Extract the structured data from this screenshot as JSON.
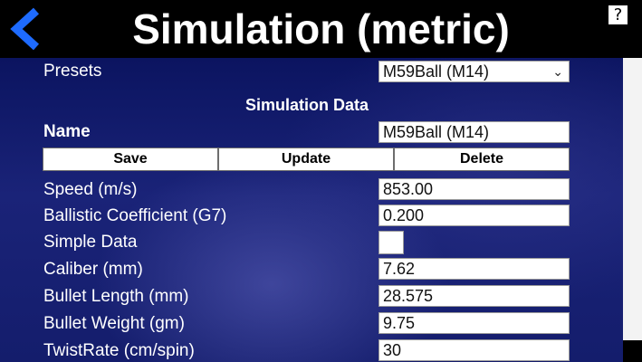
{
  "header": {
    "title": "Simulation (metric)",
    "help_label": "?"
  },
  "presets": {
    "label": "Presets",
    "selected": "M59Ball (M14)"
  },
  "section_heading": "Simulation Data",
  "name": {
    "label": "Name",
    "value": "M59Ball (M14)"
  },
  "buttons": {
    "save": "Save",
    "update": "Update",
    "delete": "Delete"
  },
  "fields": {
    "speed": {
      "label": "Speed (m/s)",
      "value": "853.00"
    },
    "ballistic_coefficient": {
      "label": "Ballistic Coefficient (G7)",
      "value": "0.200"
    },
    "simple_data": {
      "label": "Simple Data",
      "checked": false
    },
    "caliber": {
      "label": "Caliber (mm)",
      "value": "7.62"
    },
    "bullet_length": {
      "label": "Bullet Length (mm)",
      "value": "28.575"
    },
    "bullet_weight": {
      "label": "Bullet Weight (gm)",
      "value": "9.75"
    },
    "twist_rate": {
      "label": "TwistRate (cm/spin)",
      "value": "30"
    }
  },
  "colors": {
    "accent": "#1e6bff",
    "background": "#141d6c"
  },
  "icons": {
    "back": "back-arrow-icon",
    "select": "chevron-down-icon"
  }
}
